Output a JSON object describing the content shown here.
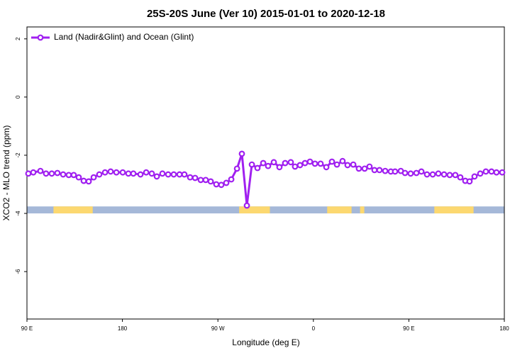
{
  "chart_data": {
    "type": "line",
    "title": "25S-20S June (Ver 10)   2015-01-01 to 2020-12-18",
    "xlabel": "Longitude (deg E)",
    "ylabel": "XCO2 - MLO trend (ppm)",
    "xlim": [
      90,
      540
    ],
    "xticks": [
      {
        "value": 90,
        "label": "90 E"
      },
      {
        "value": 180,
        "label": "180"
      },
      {
        "value": 270,
        "label": "90 W"
      },
      {
        "value": 360,
        "label": "0"
      },
      {
        "value": 450,
        "label": "90 E"
      },
      {
        "value": 540,
        "label": "180"
      }
    ],
    "ylim": [
      -7.63,
      2.41
    ],
    "yticks": [
      2,
      0,
      -2,
      -4,
      -6
    ],
    "legend": "top-left",
    "series": [
      {
        "name": "Land (Nadir&Glint) and Ocean (Glint)",
        "color": "#a020f0",
        "x": [
          91.3,
          96.0,
          102.7,
          108.0,
          113.4,
          118.7,
          124.1,
          129.4,
          134.1,
          138.8,
          143.5,
          148.2,
          152.9,
          158.2,
          163.6,
          168.9,
          174.3,
          180.3,
          185.6,
          190.3,
          197.0,
          202.4,
          207.7,
          212.4,
          217.7,
          223.1,
          228.4,
          233.8,
          238.4,
          243.8,
          248.5,
          253.8,
          258.5,
          263.2,
          268.5,
          273.2,
          277.9,
          282.6,
          288.0,
          292.6,
          297.3,
          302.0,
          307.3,
          312.7,
          317.3,
          322.7,
          328.0,
          333.4,
          338.7,
          342.7,
          347.4,
          352.1,
          356.8,
          361.5,
          366.8,
          372.2,
          377.5,
          382.2,
          387.5,
          392.2,
          397.6,
          402.9,
          408.3,
          412.9,
          417.6,
          422.3,
          427.7,
          433.0,
          437.0,
          442.4,
          446.4,
          451.7,
          457.1,
          461.8,
          467.1,
          472.5,
          477.8,
          483.2,
          488.5,
          493.8,
          498.5,
          503.2,
          507.2,
          511.9,
          517.3,
          522.6,
          527.9,
          532.6,
          538.0
        ],
        "values": [
          -2.63,
          -2.59,
          -2.54,
          -2.63,
          -2.63,
          -2.61,
          -2.66,
          -2.68,
          -2.68,
          -2.76,
          -2.88,
          -2.9,
          -2.76,
          -2.66,
          -2.59,
          -2.56,
          -2.59,
          -2.59,
          -2.63,
          -2.63,
          -2.66,
          -2.59,
          -2.63,
          -2.73,
          -2.63,
          -2.66,
          -2.66,
          -2.66,
          -2.66,
          -2.76,
          -2.78,
          -2.85,
          -2.85,
          -2.9,
          -3.0,
          -3.02,
          -2.95,
          -2.83,
          -2.46,
          -1.95,
          -3.73,
          -2.32,
          -2.44,
          -2.27,
          -2.37,
          -2.24,
          -2.41,
          -2.27,
          -2.24,
          -2.39,
          -2.34,
          -2.27,
          -2.22,
          -2.29,
          -2.29,
          -2.41,
          -2.22,
          -2.32,
          -2.2,
          -2.34,
          -2.32,
          -2.46,
          -2.46,
          -2.39,
          -2.51,
          -2.51,
          -2.54,
          -2.56,
          -2.56,
          -2.54,
          -2.61,
          -2.63,
          -2.61,
          -2.56,
          -2.66,
          -2.66,
          -2.63,
          -2.66,
          -2.68,
          -2.68,
          -2.76,
          -2.88,
          -2.9,
          -2.73,
          -2.63,
          -2.56,
          -2.56,
          -2.59,
          -2.59
        ]
      }
    ],
    "surface_strip": {
      "ylim": [
        -3.76,
        -4.0
      ],
      "ocean_color": "#a5b8d8",
      "land_color": "#fcd870",
      "land": [
        [
          115,
          152
        ],
        [
          290,
          319
        ],
        [
          373,
          396
        ],
        [
          404,
          408
        ],
        [
          474,
          511
        ]
      ]
    }
  }
}
